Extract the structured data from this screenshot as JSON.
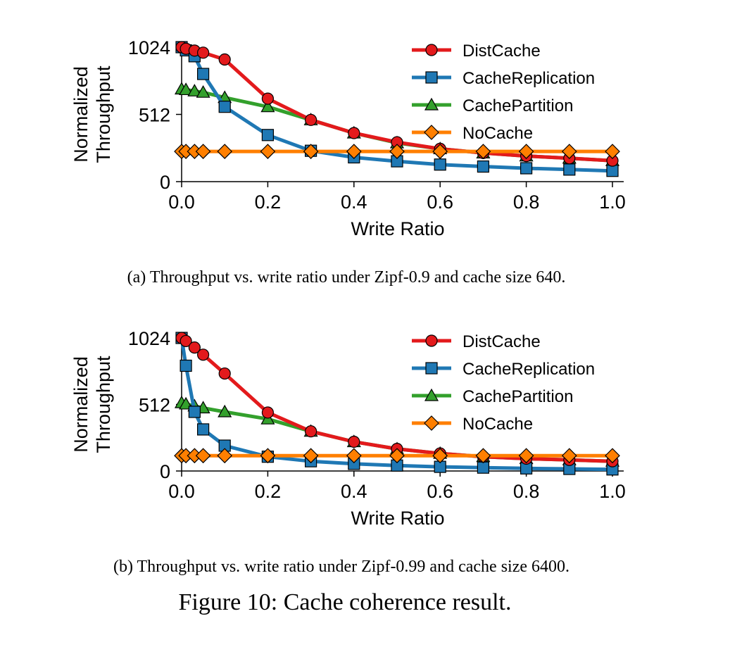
{
  "figure_caption": "Figure 10: Cache coherence result.",
  "colors": {
    "DistCache": "#e31a1c",
    "CacheReplication": "#1f78b4",
    "CachePartition": "#33a02c",
    "NoCache": "#ff7f00"
  },
  "markers": {
    "DistCache": "circle",
    "CacheReplication": "square",
    "CachePartition": "triangle",
    "NoCache": "diamond"
  },
  "chart_data": [
    {
      "type": "line",
      "caption": "(a)  Throughput vs. write ratio under Zipf-0.9 and cache size 640.",
      "xlabel": "Write Ratio",
      "ylabel_lines": [
        "Normalized",
        "Throughput"
      ],
      "xlim": [
        0,
        1
      ],
      "ylim": [
        0,
        1024
      ],
      "xticks": [
        "0.0",
        "0.2",
        "0.4",
        "0.6",
        "0.8",
        "1.0"
      ],
      "yticks": [
        "0",
        "512",
        "1024"
      ],
      "legend_position": "top-right",
      "x": [
        0.0,
        0.01,
        0.03,
        0.05,
        0.1,
        0.2,
        0.3,
        0.4,
        0.5,
        0.6,
        0.7,
        0.8,
        0.9,
        1.0
      ],
      "series": [
        {
          "name": "DistCache",
          "values": [
            1024,
            1012,
            998,
            982,
            930,
            632,
            470,
            370,
            300,
            250,
            218,
            195,
            178,
            160
          ]
        },
        {
          "name": "CacheReplication",
          "values": [
            1024,
            1000,
            955,
            820,
            570,
            355,
            235,
            185,
            155,
            130,
            115,
            102,
            92,
            82
          ]
        },
        {
          "name": "CachePartition",
          "values": [
            705,
            700,
            690,
            680,
            640,
            570,
            470,
            370,
            295,
            250,
            218,
            195,
            178,
            160
          ]
        },
        {
          "name": "NoCache",
          "values": [
            230,
            230,
            230,
            230,
            230,
            230,
            230,
            230,
            230,
            230,
            230,
            230,
            230,
            230
          ]
        }
      ]
    },
    {
      "type": "line",
      "caption": "(b)  Throughput vs. write ratio under Zipf-0.99 and cache size 6400.",
      "xlabel": "Write Ratio",
      "ylabel_lines": [
        "Normalized",
        "Throughput"
      ],
      "xlim": [
        0,
        1
      ],
      "ylim": [
        0,
        1024
      ],
      "xticks": [
        "0.0",
        "0.2",
        "0.4",
        "0.6",
        "0.8",
        "1.0"
      ],
      "yticks": [
        "0",
        "512",
        "1024"
      ],
      "legend_position": "top-right",
      "x": [
        0.0,
        0.01,
        0.03,
        0.05,
        0.1,
        0.2,
        0.3,
        0.4,
        0.5,
        0.6,
        0.7,
        0.8,
        0.9,
        1.0
      ],
      "series": [
        {
          "name": "DistCache",
          "values": [
            1024,
            1000,
            950,
            895,
            750,
            450,
            305,
            225,
            170,
            135,
            110,
            95,
            85,
            75
          ]
        },
        {
          "name": "CacheReplication",
          "values": [
            1024,
            810,
            455,
            320,
            195,
            110,
            75,
            55,
            42,
            32,
            26,
            20,
            16,
            12
          ]
        },
        {
          "name": "CachePartition",
          "values": [
            525,
            515,
            500,
            485,
            455,
            400,
            305,
            225,
            170,
            135,
            110,
            95,
            85,
            75
          ]
        },
        {
          "name": "NoCache",
          "values": [
            118,
            118,
            118,
            118,
            118,
            118,
            118,
            118,
            118,
            118,
            118,
            118,
            118,
            118
          ]
        }
      ]
    }
  ]
}
